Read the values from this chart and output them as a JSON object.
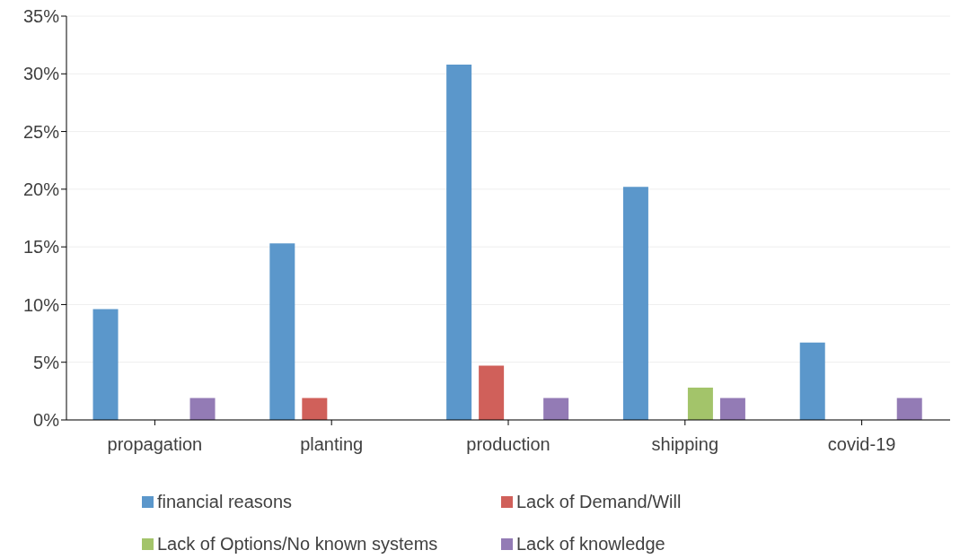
{
  "chart_data": {
    "type": "bar",
    "categories": [
      "propagation",
      "planting",
      "production",
      "shipping",
      "covid-19"
    ],
    "series": [
      {
        "name": "financial reasons",
        "color": "#5b97cb",
        "values": [
          9.6,
          15.3,
          30.8,
          20.2,
          6.7
        ]
      },
      {
        "name": "Lack of Demand/Will",
        "color": "#d0605a",
        "values": [
          null,
          1.9,
          4.7,
          null,
          null
        ]
      },
      {
        "name": "Lack of Options/No known systems",
        "color": "#a3c46a",
        "values": [
          null,
          null,
          null,
          2.8,
          null
        ]
      },
      {
        "name": "Lack of knowledge",
        "color": "#937bb5",
        "values": [
          1.9,
          null,
          1.9,
          1.9,
          1.9
        ]
      }
    ],
    "ylim": [
      0,
      35
    ],
    "yticks": [
      {
        "value": 0,
        "label": "0%"
      },
      {
        "value": 5,
        "label": "5%"
      },
      {
        "value": 10,
        "label": "10%"
      },
      {
        "value": 15,
        "label": "15%"
      },
      {
        "value": 20,
        "label": "20%"
      },
      {
        "value": 25,
        "label": "25%"
      },
      {
        "value": 30,
        "label": "30%"
      },
      {
        "value": 35,
        "label": "35%"
      }
    ],
    "grid": "y",
    "legend": "bottom"
  }
}
